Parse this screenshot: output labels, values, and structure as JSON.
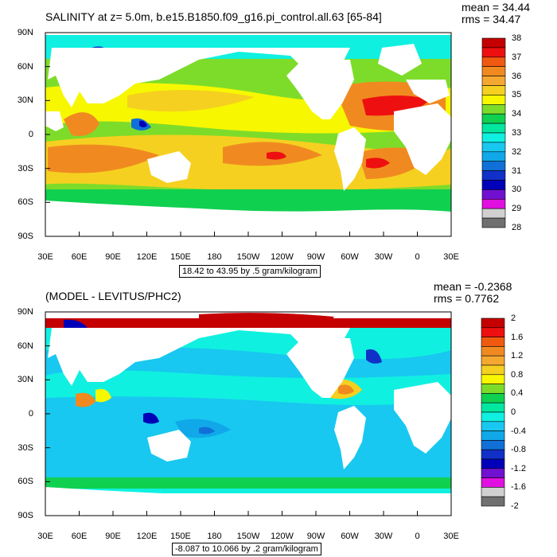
{
  "panels": [
    {
      "title": "SALINITY at z=    5.0m, b.e15.B1850.f09_g16.pi_control.all.63 [65-84]",
      "mean_text": "mean = 34.44",
      "rms_text": "rms = 34.47",
      "range_note": "18.42 to 43.95 by .5 gram/kilogram",
      "colorbar_labels": [
        "38",
        "37",
        "36",
        "35",
        "34",
        "33",
        "32",
        "31",
        "30",
        "29",
        "28"
      ],
      "colorbar_colors": [
        "#c40000",
        "#ee1010",
        "#f05a10",
        "#f08a20",
        "#f5a830",
        "#f5d020",
        "#f7f700",
        "#7ddc2a",
        "#10d050",
        "#00e8a0",
        "#10f0e0",
        "#18c8f0",
        "#10a8e8",
        "#1070d8",
        "#1030c8",
        "#0000b8",
        "#7010d0",
        "#e010e0",
        "#d0d0d0",
        "#707070"
      ]
    },
    {
      "title": "(MODEL - LEVITUS/PHC2)",
      "mean_text": "mean = -0.2368",
      "rms_text": "rms = 0.7762",
      "range_note": "-8.087 to 10.066 by .2 gram/kilogram",
      "colorbar_labels": [
        "2",
        "1.6",
        "1.2",
        "0.8",
        "0.4",
        "0",
        "-0.4",
        "-0.8",
        "-1.2",
        "-1.6",
        "-2"
      ],
      "colorbar_colors": [
        "#c40000",
        "#ee1010",
        "#f05a10",
        "#f08a20",
        "#f5a830",
        "#f5d020",
        "#f7f700",
        "#7ddc2a",
        "#10d050",
        "#00e8a0",
        "#10f0e0",
        "#18c8f0",
        "#10a8e8",
        "#1070d8",
        "#1030c8",
        "#0000b8",
        "#7010d0",
        "#e010e0",
        "#d0d0d0",
        "#707070"
      ]
    }
  ],
  "chart_data": [
    {
      "type": "heatmap",
      "title": "SALINITY at z=    5.0m, b.e15.B1850.f09_g16.pi_control.all.63 [65-84]",
      "xlabel": "",
      "ylabel": "",
      "x_ticks": [
        "30E",
        "60E",
        "90E",
        "120E",
        "150E",
        "180",
        "150W",
        "120W",
        "90W",
        "60W",
        "30W",
        "0",
        "30E"
      ],
      "y_ticks": [
        "90N",
        "60N",
        "30N",
        "0",
        "30S",
        "60S",
        "90S"
      ],
      "colorbar": {
        "levels": [
          28,
          29,
          30,
          31,
          32,
          33,
          34,
          35,
          36,
          37,
          38
        ]
      },
      "mean": 34.44,
      "rms": 34.47,
      "min": 18.42,
      "max": 43.95,
      "interval": 0.5,
      "units": "gram/kilogram"
    },
    {
      "type": "heatmap",
      "title": "(MODEL - LEVITUS/PHC2)",
      "xlabel": "",
      "ylabel": "",
      "x_ticks": [
        "30E",
        "60E",
        "90E",
        "120E",
        "150E",
        "180",
        "150W",
        "120W",
        "90W",
        "60W",
        "30W",
        "0",
        "30E"
      ],
      "y_ticks": [
        "90N",
        "60N",
        "30N",
        "0",
        "30S",
        "60S",
        "90S"
      ],
      "colorbar": {
        "levels": [
          -2,
          -1.6,
          -1.2,
          -0.8,
          -0.4,
          0,
          0.4,
          0.8,
          1.2,
          1.6,
          2
        ]
      },
      "mean": -0.2368,
      "rms": 0.7762,
      "min": -8.087,
      "max": 10.066,
      "interval": 0.2,
      "units": "gram/kilogram"
    }
  ]
}
